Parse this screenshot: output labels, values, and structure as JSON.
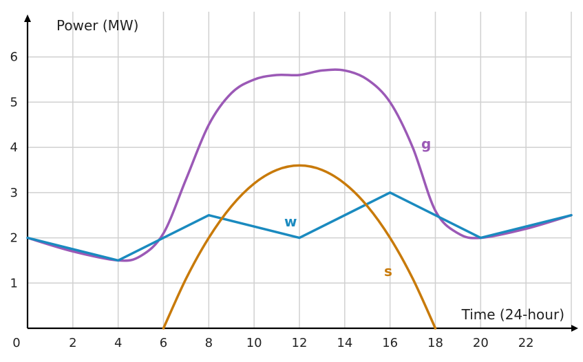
{
  "chart_data": {
    "type": "line",
    "xlabel": "Time (24-hour)",
    "ylabel": "Power (MW)",
    "xlim": [
      0,
      24
    ],
    "ylim": [
      0,
      7
    ],
    "x_ticks": [
      2,
      4,
      6,
      8,
      10,
      12,
      14,
      16,
      18,
      20,
      22
    ],
    "y_ticks": [
      1,
      2,
      3,
      4,
      5,
      6
    ],
    "origin_label": "0",
    "grid": true,
    "series": [
      {
        "name": "g",
        "color": "#9b59b6",
        "smooth": true,
        "x": [
          0,
          2,
          4,
          5,
          6,
          7,
          8,
          9,
          10,
          11,
          12,
          13,
          14,
          15,
          16,
          17,
          18,
          19,
          20,
          22,
          24
        ],
        "values": [
          2.0,
          1.7,
          1.5,
          1.6,
          2.1,
          3.3,
          4.5,
          5.2,
          5.5,
          5.6,
          5.6,
          5.7,
          5.7,
          5.5,
          5.0,
          4.0,
          2.6,
          2.1,
          2.0,
          2.2,
          2.5
        ]
      },
      {
        "name": "w",
        "color": "#1a8abf",
        "smooth": false,
        "x": [
          0,
          4,
          8,
          12,
          16,
          20,
          24
        ],
        "values": [
          2.0,
          1.5,
          2.5,
          2.0,
          3.0,
          2.0,
          2.5
        ]
      },
      {
        "name": "s",
        "color": "#c87a0a",
        "smooth": false,
        "x": [
          6,
          7,
          8,
          9,
          10,
          11,
          12,
          13,
          14,
          15,
          16,
          17,
          18
        ],
        "values": [
          0,
          1.1,
          2.0,
          2.7,
          3.2,
          3.5,
          3.6,
          3.5,
          3.2,
          2.7,
          2.0,
          1.1,
          0
        ]
      }
    ]
  }
}
